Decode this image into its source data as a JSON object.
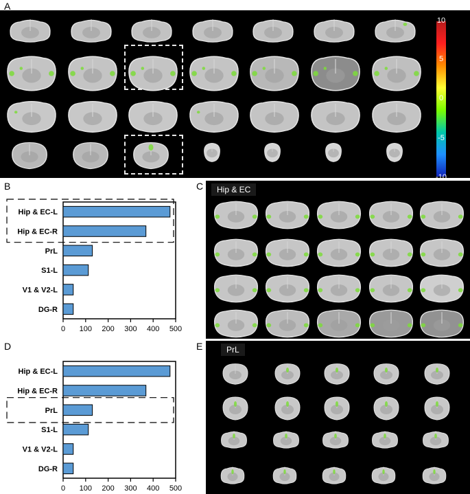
{
  "figure": {
    "panel_letters": {
      "a": "A",
      "b": "B",
      "c": "C",
      "d": "D",
      "e": "E"
    },
    "colorbar_ticks": [
      "10",
      "5",
      "0",
      "-5",
      "-10"
    ],
    "colorbar_colors": [
      "#b71c1c",
      "#ff1f1f",
      "#ff8c00",
      "#ffff33",
      "#7cfc00",
      "#00c8aa",
      "#1e90ff",
      "#1024b8"
    ],
    "panel_c_title": "Hip & EC",
    "panel_e_title": "PrL",
    "highlight_color": "#7ddc3a"
  },
  "chart_data": [
    {
      "type": "bar",
      "orientation": "horizontal",
      "categories": [
        "Hip & EC-L",
        "Hip & EC-R",
        "PrL",
        "S1-L",
        "V1 & V2-L",
        "DG-R"
      ],
      "values": [
        475,
        368,
        130,
        112,
        45,
        45
      ],
      "xlim": [
        0,
        500
      ],
      "xticks": [
        "0",
        "100",
        "200",
        "300",
        "400",
        "500"
      ],
      "bar_color": "#5b9bd5",
      "highlighted_categories": [
        "Hip & EC-L",
        "Hip & EC-R"
      ]
    },
    {
      "type": "bar",
      "orientation": "horizontal",
      "categories": [
        "Hip & EC-L",
        "Hip & EC-R",
        "PrL",
        "S1-L",
        "V1 & V2-L",
        "DG-R"
      ],
      "values": [
        475,
        368,
        130,
        112,
        45,
        45
      ],
      "xlim": [
        0,
        500
      ],
      "xticks": [
        "0",
        "100",
        "200",
        "300",
        "400",
        "500"
      ],
      "bar_color": "#5b9bd5",
      "highlighted_categories": [
        "PrL"
      ]
    }
  ]
}
